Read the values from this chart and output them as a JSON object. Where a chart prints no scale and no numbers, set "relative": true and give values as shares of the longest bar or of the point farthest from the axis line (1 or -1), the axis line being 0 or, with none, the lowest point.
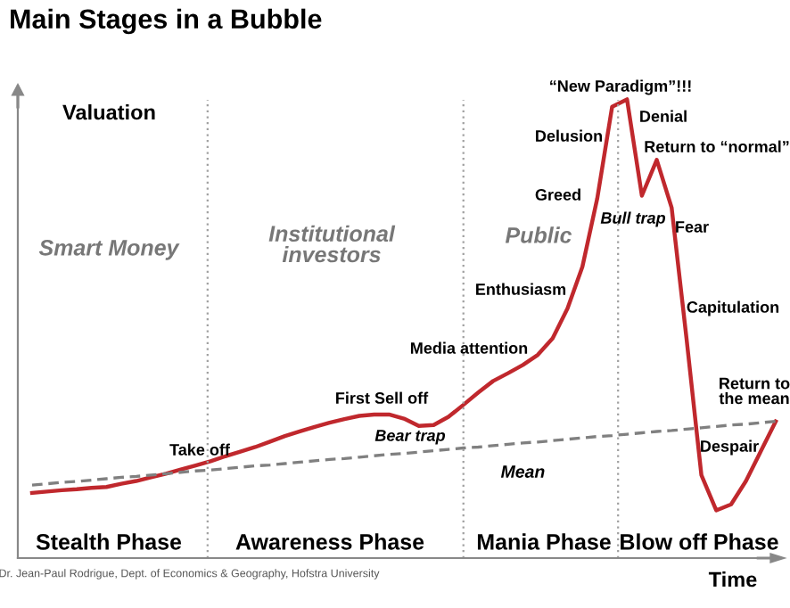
{
  "chart_data": {
    "type": "line",
    "relative": true,
    "title": "Main Stages in a Bubble",
    "xlabel": "Time",
    "ylabel": "Valuation",
    "categories": [
      null,
      null,
      null,
      null,
      null,
      null,
      null,
      null,
      null,
      null,
      null,
      null,
      null,
      null,
      null,
      null,
      null,
      null,
      null,
      null,
      null,
      null,
      null,
      null,
      null,
      null,
      null,
      null,
      null,
      null,
      null,
      null,
      null,
      null,
      null,
      null,
      null,
      null,
      null,
      null,
      null,
      null,
      null,
      null,
      null,
      null,
      null,
      null,
      null,
      null,
      null
    ],
    "series": [
      {
        "color": "#c0282d",
        "line_style": "solid",
        "values": [
          0.142,
          0.145,
          0.148,
          0.15,
          0.153,
          0.155,
          0.162,
          0.168,
          0.176,
          0.184,
          0.193,
          0.202,
          0.211,
          0.222,
          0.232,
          0.242,
          0.254,
          0.266,
          0.276,
          0.286,
          0.295,
          0.303,
          0.31,
          0.313,
          0.313,
          0.304,
          0.288,
          0.29,
          0.308,
          0.334,
          0.361,
          0.386,
          0.403,
          0.421,
          0.443,
          0.479,
          0.544,
          0.635,
          0.784,
          0.984,
          1,
          0.79,
          0.868,
          0.764,
          0.479,
          0.181,
          0.104,
          0.117,
          0.168,
          0.233,
          0.298
        ]
      },
      {
        "name": "Mean",
        "color": "#808080",
        "line_style": "dashed",
        "values": [
          0.159,
          0.162,
          0.165,
          0.167,
          0.17,
          0.173,
          0.176,
          0.178,
          0.181,
          0.184,
          0.187,
          0.19,
          0.192,
          0.195,
          0.198,
          0.201,
          0.203,
          0.206,
          0.209,
          0.212,
          0.215,
          0.217,
          0.22,
          0.223,
          0.226,
          0.228,
          0.231,
          0.234,
          0.237,
          0.24,
          0.242,
          0.245,
          0.248,
          0.251,
          0.253,
          0.256,
          0.259,
          0.262,
          0.265,
          0.267,
          0.27,
          0.273,
          0.276,
          0.278,
          0.281,
          0.284,
          0.287,
          0.29,
          0.292,
          0.295,
          0.298
        ]
      }
    ],
    "annotations": [
      "Smart Money",
      "Institutional\ninvestors",
      "Public",
      "Take off",
      "First Sell off",
      "Bear trap",
      "Media attention",
      "Enthusiasm",
      "Greed",
      "Delusion",
      "“New Paradigm”!!!",
      "Denial",
      "Return to “normal”",
      "Bull trap",
      "Fear",
      "Capitulation",
      "Despair",
      "Return to\nthe mean",
      "Stealth Phase",
      "Awareness Phase",
      "Mania Phase",
      "Blow off Phase",
      "Dr. Jean-Paul Rodrigue, Dept. of Economics & Geography, Hofstra University"
    ],
    "legend": false,
    "marker": "none"
  }
}
